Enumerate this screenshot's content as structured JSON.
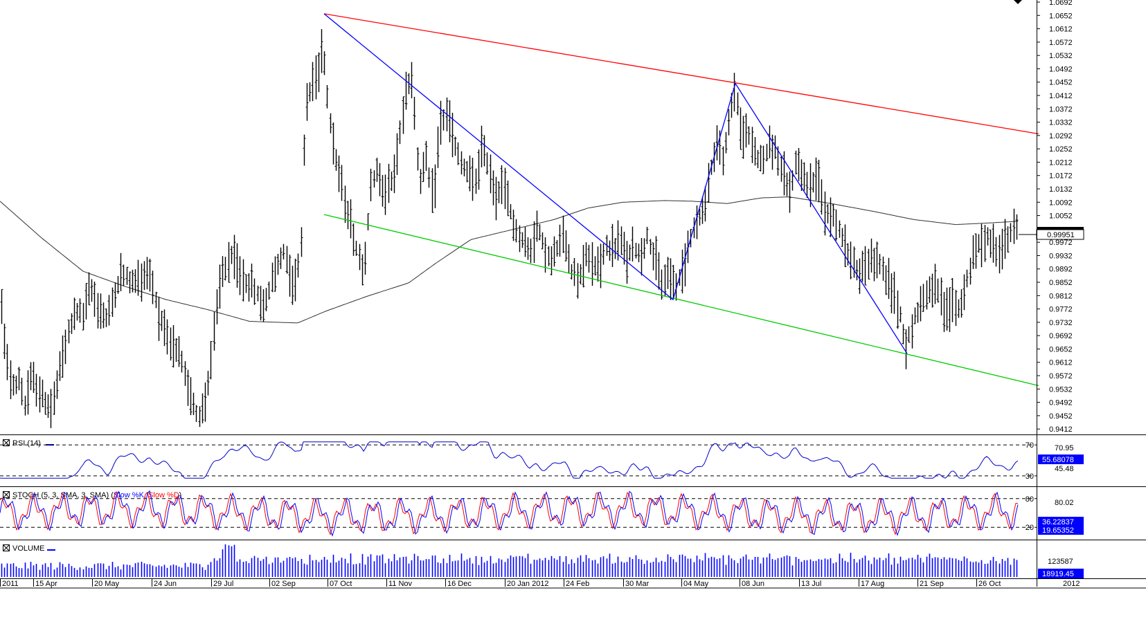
{
  "chart_data": [
    {
      "type": "ohlc",
      "title": "",
      "ylim": [
        0.9402,
        1.0692
      ],
      "y_ticks": [
        "1.0692",
        "1.0652",
        "1.0612",
        "1.0572",
        "1.0532",
        "1.0492",
        "1.0452",
        "1.0412",
        "1.0372",
        "1.0332",
        "1.0292",
        "1.0252",
        "1.0212",
        "1.0172",
        "1.0132",
        "1.0092",
        "1.0052",
        "0.9972",
        "0.9932",
        "0.9892",
        "0.9852",
        "0.9812",
        "0.9772",
        "0.9732",
        "0.9692",
        "0.9652",
        "0.9612",
        "0.9572",
        "0.9532",
        "0.9492",
        "0.9452",
        "0.9412"
      ],
      "last_price": "0.99951",
      "price_anchors": [
        [
          0,
          0.984
        ],
        [
          8,
          0.962
        ],
        [
          20,
          0.953
        ],
        [
          28,
          0.957
        ],
        [
          35,
          0.948
        ],
        [
          45,
          0.957
        ],
        [
          60,
          0.951
        ],
        [
          75,
          0.947
        ],
        [
          85,
          0.958
        ],
        [
          100,
          0.971
        ],
        [
          110,
          0.977
        ],
        [
          120,
          0.975
        ],
        [
          130,
          0.984
        ],
        [
          140,
          0.978
        ],
        [
          155,
          0.974
        ],
        [
          165,
          0.982
        ],
        [
          175,
          0.988
        ],
        [
          190,
          0.985
        ],
        [
          200,
          0.986
        ],
        [
          215,
          0.989
        ],
        [
          230,
          0.975
        ],
        [
          240,
          0.968
        ],
        [
          250,
          0.965
        ],
        [
          260,
          0.963
        ],
        [
          265,
          0.958
        ],
        [
          275,
          0.952
        ],
        [
          285,
          0.945
        ],
        [
          295,
          0.948
        ],
        [
          305,
          0.963
        ],
        [
          310,
          0.972
        ],
        [
          320,
          0.988
        ],
        [
          335,
          0.993
        ],
        [
          350,
          0.986
        ],
        [
          365,
          0.984
        ],
        [
          380,
          0.978
        ],
        [
          395,
          0.987
        ],
        [
          410,
          0.995
        ],
        [
          425,
          0.983
        ],
        [
          435,
          0.998
        ],
        [
          440,
          1.035
        ],
        [
          450,
          1.045
        ],
        [
          460,
          1.048
        ],
        [
          465,
          1.058
        ],
        [
          475,
          1.036
        ],
        [
          485,
          1.022
        ],
        [
          495,
          1.012
        ],
        [
          505,
          1.004
        ],
        [
          515,
          0.995
        ],
        [
          525,
          0.989
        ],
        [
          535,
          1.013
        ],
        [
          545,
          1.019
        ],
        [
          555,
          1.012
        ],
        [
          565,
          1.015
        ],
        [
          575,
          1.025
        ],
        [
          585,
          1.043
        ],
        [
          595,
          1.047
        ],
        [
          605,
          1.015
        ],
        [
          615,
          1.022
        ],
        [
          625,
          1.009
        ],
        [
          635,
          1.032
        ],
        [
          645,
          1.036
        ],
        [
          655,
          1.027
        ],
        [
          665,
          1.021
        ],
        [
          675,
          1.018
        ],
        [
          685,
          1.014
        ],
        [
          695,
          1.025
        ],
        [
          705,
          1.021
        ],
        [
          715,
          1.011
        ],
        [
          725,
          1.015
        ],
        [
          735,
          1.008
        ],
        [
          745,
          1.0
        ],
        [
          755,
          0.998
        ],
        [
          765,
          0.994
        ],
        [
          775,
          1.002
        ],
        [
          785,
          0.996
        ],
        [
          795,
          0.991
        ],
        [
          805,
          0.996
        ],
        [
          815,
          0.999
        ],
        [
          825,
          0.989
        ],
        [
          835,
          0.986
        ],
        [
          845,
          0.993
        ],
        [
          855,
          0.991
        ],
        [
          865,
          0.989
        ],
        [
          875,
          0.996
        ],
        [
          885,
          0.995
        ],
        [
          895,
          0.998
        ],
        [
          905,
          0.992
        ],
        [
          915,
          0.996
        ],
        [
          925,
          0.993
        ],
        [
          935,
          0.999
        ],
        [
          945,
          0.992
        ],
        [
          955,
          0.985
        ],
        [
          965,
          0.988
        ],
        [
          975,
          0.984
        ],
        [
          985,
          0.988
        ],
        [
          995,
          0.998
        ],
        [
          1005,
          1.003
        ],
        [
          1015,
          1.006
        ],
        [
          1025,
          1.018
        ],
        [
          1035,
          1.027
        ],
        [
          1045,
          1.022
        ],
        [
          1055,
          1.037
        ],
        [
          1062,
          1.044
        ],
        [
          1070,
          1.029
        ],
        [
          1080,
          1.03
        ],
        [
          1090,
          1.024
        ],
        [
          1100,
          1.021
        ],
        [
          1110,
          1.026
        ],
        [
          1120,
          1.025
        ],
        [
          1130,
          1.017
        ],
        [
          1140,
          1.012
        ],
        [
          1150,
          1.022
        ],
        [
          1160,
          1.017
        ],
        [
          1170,
          1.013
        ],
        [
          1180,
          1.019
        ],
        [
          1190,
          1.007
        ],
        [
          1200,
          1.005
        ],
        [
          1210,
          1.003
        ],
        [
          1220,
          0.995
        ],
        [
          1230,
          0.992
        ],
        [
          1240,
          0.988
        ],
        [
          1250,
          0.991
        ],
        [
          1260,
          0.992
        ],
        [
          1270,
          0.991
        ],
        [
          1280,
          0.986
        ],
        [
          1290,
          0.982
        ],
        [
          1300,
          0.975
        ],
        [
          1308,
          0.966
        ],
        [
          1315,
          0.971
        ],
        [
          1325,
          0.977
        ],
        [
          1335,
          0.981
        ],
        [
          1345,
          0.984
        ],
        [
          1355,
          0.982
        ],
        [
          1365,
          0.975
        ],
        [
          1375,
          0.979
        ],
        [
          1385,
          0.977
        ],
        [
          1395,
          0.985
        ],
        [
          1405,
          0.993
        ],
        [
          1415,
          0.997
        ],
        [
          1425,
          0.999
        ],
        [
          1435,
          0.996
        ],
        [
          1445,
          0.995
        ],
        [
          1455,
          0.998
        ],
        [
          1465,
          1.002
        ],
        [
          1471,
          0.9995
        ]
      ],
      "ma_anchors": [
        [
          0,
          1.0095
        ],
        [
          60,
          0.9985
        ],
        [
          120,
          0.9885
        ],
        [
          180,
          0.984
        ],
        [
          240,
          0.98
        ],
        [
          300,
          0.977
        ],
        [
          360,
          0.9735
        ],
        [
          430,
          0.973
        ],
        [
          470,
          0.9765
        ],
        [
          530,
          0.981
        ],
        [
          590,
          0.985
        ],
        [
          630,
          0.991
        ],
        [
          680,
          0.998
        ],
        [
          740,
          1.001
        ],
        [
          800,
          1.004
        ],
        [
          850,
          1.0075
        ],
        [
          900,
          1.0092
        ],
        [
          960,
          1.0097
        ],
        [
          1000,
          1.0095
        ],
        [
          1050,
          1.0088
        ],
        [
          1100,
          1.0105
        ],
        [
          1140,
          1.0108
        ],
        [
          1200,
          1.0088
        ],
        [
          1260,
          1.0065
        ],
        [
          1320,
          1.004
        ],
        [
          1380,
          1.0025
        ],
        [
          1430,
          1.003
        ],
        [
          1471,
          1.0035
        ]
      ],
      "trendlines": [
        {
          "role": "channel-upper",
          "color": "#ff0000",
          "from": [
            468,
            1.0657
          ],
          "to": [
            1500,
            1.0297
          ]
        },
        {
          "role": "channel-lower",
          "color": "#00cc00",
          "from": [
            468,
            1.0055
          ],
          "to": [
            1500,
            0.9542
          ]
        },
        {
          "role": "zigzag",
          "color": "#0000ff",
          "points": [
            [
              468,
              1.0657
            ],
            [
              972,
              0.98
            ],
            [
              1062,
              1.0448
            ],
            [
              1310,
              0.9638
            ]
          ]
        }
      ]
    },
    {
      "type": "line",
      "label_title": "RSI (14)",
      "ylim": [
        20,
        80
      ],
      "levels": [
        "70",
        "30"
      ],
      "level_values": [
        70,
        30
      ],
      "axis_values": [
        "70.95",
        "45.48"
      ],
      "current_value": "55.68078",
      "series_color": "#0000cc"
    },
    {
      "type": "line",
      "label_title": "STOCH (5, 3, SMA, 3, SMA)",
      "series_labels": [
        "Slow %K",
        "Slow %D"
      ],
      "series_colors": [
        "#0000ff",
        "#ff0000"
      ],
      "ylim": [
        0,
        100
      ],
      "levels": [
        "80",
        "20"
      ],
      "level_values": [
        80,
        20
      ],
      "axis_values": [
        "80.02"
      ],
      "current_values": [
        "36.22837",
        "19.65352"
      ]
    },
    {
      "type": "bar",
      "label_title": "VOLUME",
      "axis_values": [
        "123587"
      ],
      "current_value": "18919.45",
      "bar_color": "#0000ff"
    }
  ],
  "x_axis": {
    "labels": [
      "2011",
      "15 Apr",
      "20 May",
      "24 Jun",
      "29 Jul",
      "02 Sep",
      "07 Oct",
      "11 Nov",
      "16 Dec",
      "20 Jan 2012",
      "24 Feb",
      "30 Mar",
      "04 May",
      "08 Jun",
      "13 Jul",
      "17 Aug",
      "21 Sep",
      "26 Oct",
      "2012"
    ]
  },
  "colors": {
    "grid": "#000000",
    "price": "#000000",
    "ma": "#303030",
    "value_box": "#0000ff",
    "value_box_text": "#ffffff"
  },
  "icons": {
    "panel_toggle": "checkbox-x-icon",
    "scroll_marker": "triangle-down-icon"
  }
}
